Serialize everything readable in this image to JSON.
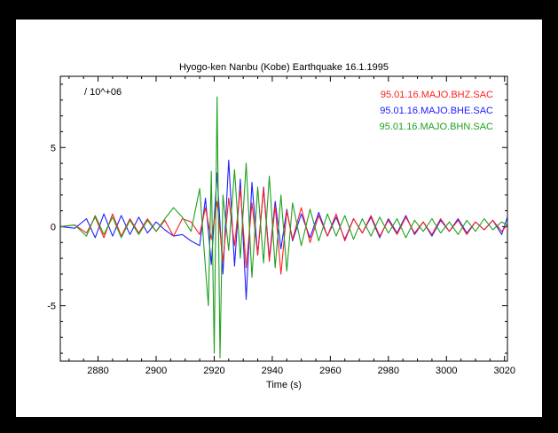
{
  "chart_data": {
    "type": "line",
    "title": "Hyogo-ken Nanbu (Kobe) Earthquake 16.1.1995",
    "xlabel": "Time (s)",
    "ylabel": "",
    "scale_label": "/ 10^+06",
    "xlim": [
      2867,
      3021
    ],
    "ylim": [
      -8.5,
      9.5
    ],
    "x_ticks": [
      2880,
      2900,
      2920,
      2940,
      2960,
      2980,
      3000,
      3020
    ],
    "y_ticks": [
      -5,
      0,
      5
    ],
    "legend_position": "top-right",
    "grid": false,
    "series": [
      {
        "name": "95.01.16.MAJO.BHZ.SAC",
        "color": "#ff2020",
        "x": [
          2867,
          2872,
          2876,
          2879,
          2882,
          2885,
          2888,
          2891,
          2894,
          2897,
          2900,
          2903,
          2906,
          2909,
          2912,
          2915,
          2917,
          2919,
          2921,
          2923,
          2925,
          2927,
          2929,
          2931,
          2933,
          2935,
          2937,
          2939,
          2941,
          2943,
          2945,
          2947,
          2950,
          2953,
          2956,
          2959,
          2962,
          2965,
          2968,
          2971,
          2974,
          2977,
          2980,
          2983,
          2986,
          2989,
          2992,
          2995,
          2998,
          3001,
          3004,
          3007,
          3010,
          3013,
          3016,
          3019,
          3021
        ],
        "y": [
          0.0,
          0.1,
          -0.4,
          0.6,
          -0.7,
          0.8,
          -0.6,
          0.5,
          -0.4,
          0.5,
          -0.3,
          0.4,
          -0.6,
          0.5,
          0.3,
          -0.5,
          1.2,
          -0.8,
          1.6,
          -2.2,
          1.8,
          -1.2,
          2.4,
          -2.6,
          1.5,
          -1.8,
          2.4,
          -2.2,
          1.3,
          -3.0,
          1.0,
          -0.8,
          1.2,
          -1.0,
          0.7,
          -0.6,
          0.8,
          -0.9,
          0.5,
          -0.4,
          0.7,
          -0.6,
          0.4,
          -0.5,
          0.6,
          -0.4,
          0.3,
          -0.5,
          0.5,
          -0.3,
          0.4,
          -0.5,
          0.3,
          -0.2,
          0.4,
          -0.3,
          0.1
        ]
      },
      {
        "name": "95.01.16.MAJO.BHE.SAC",
        "color": "#2020ff",
        "x": [
          2867,
          2872,
          2876,
          2879,
          2882,
          2885,
          2888,
          2891,
          2894,
          2897,
          2900,
          2903,
          2906,
          2909,
          2912,
          2915,
          2917,
          2919,
          2921,
          2923,
          2925,
          2927,
          2929,
          2931,
          2933,
          2935,
          2937,
          2939,
          2941,
          2943,
          2945,
          2947,
          2950,
          2953,
          2956,
          2959,
          2962,
          2965,
          2968,
          2971,
          2974,
          2977,
          2980,
          2983,
          2986,
          2989,
          2992,
          2995,
          2998,
          3001,
          3004,
          3007,
          3010,
          3013,
          3016,
          3019,
          3021
        ],
        "y": [
          0.0,
          -0.1,
          0.5,
          -0.7,
          0.8,
          -0.6,
          0.7,
          -0.5,
          0.6,
          -0.4,
          0.3,
          -0.2,
          -0.6,
          -0.5,
          -0.9,
          -1.2,
          1.8,
          -2.4,
          3.4,
          -3.0,
          4.2,
          -2.5,
          3.0,
          -4.6,
          2.8,
          -1.8,
          2.5,
          -2.0,
          1.6,
          -1.4,
          1.1,
          -0.9,
          0.8,
          -0.7,
          0.9,
          -0.6,
          0.6,
          -0.8,
          0.5,
          -0.4,
          0.6,
          -0.7,
          0.5,
          -0.4,
          0.7,
          -0.5,
          0.3,
          -0.6,
          0.4,
          -0.3,
          0.5,
          -0.4,
          0.3,
          -0.2,
          0.4,
          -0.5,
          0.6
        ]
      },
      {
        "name": "95.01.16.MAJO.BHN.SAC",
        "color": "#20a020",
        "x": [
          2867,
          2872,
          2876,
          2879,
          2882,
          2885,
          2888,
          2891,
          2894,
          2897,
          2900,
          2903,
          2906,
          2909,
          2912,
          2915,
          2917,
          2918,
          2919,
          2920,
          2921,
          2922,
          2923,
          2925,
          2927,
          2929,
          2931,
          2933,
          2935,
          2937,
          2939,
          2941,
          2943,
          2945,
          2947,
          2950,
          2953,
          2956,
          2959,
          2962,
          2965,
          2968,
          2971,
          2974,
          2977,
          2980,
          2983,
          2986,
          2989,
          2992,
          2995,
          2998,
          3001,
          3004,
          3007,
          3010,
          3013,
          3016,
          3019,
          3021
        ],
        "y": [
          0.0,
          0.1,
          -0.6,
          0.7,
          -0.5,
          0.6,
          -0.7,
          0.4,
          -0.5,
          0.4,
          -0.3,
          0.5,
          1.2,
          0.6,
          -0.3,
          2.4,
          -2.6,
          -5.0,
          3.5,
          -8.0,
          8.2,
          -8.3,
          2.0,
          -1.5,
          3.6,
          -2.0,
          4.0,
          -3.2,
          2.5,
          -2.3,
          3.2,
          -2.6,
          2.0,
          -2.8,
          1.5,
          -1.2,
          1.1,
          -0.9,
          0.8,
          -0.6,
          0.7,
          -0.8,
          0.5,
          -0.6,
          0.6,
          -0.4,
          0.5,
          -0.7,
          0.4,
          -0.3,
          0.5,
          -0.4,
          0.3,
          -0.5,
          0.4,
          -0.3,
          0.5,
          -0.2,
          0.3,
          0.1
        ]
      }
    ]
  }
}
